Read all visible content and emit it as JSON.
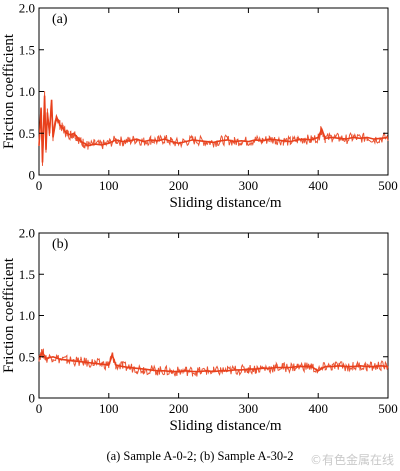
{
  "caption": "(a) Sample A-0-2; (b) Sample A-30-2",
  "watermark": "©有色金属在线",
  "colors": {
    "series": "#e8401c",
    "axis": "#000000",
    "background": "#ffffff"
  },
  "chart_data": [
    {
      "type": "line",
      "panel_label": "(a)",
      "xlabel": "Sliding distance/m",
      "ylabel": "Friction coefficient",
      "xlim": [
        0,
        500
      ],
      "ylim": [
        0,
        2.0
      ],
      "xticks": [
        "0",
        "100",
        "200",
        "300",
        "400",
        "500"
      ],
      "yticks": [
        "0",
        "0.5",
        "1.0",
        "1.5",
        "2.0"
      ],
      "grid": false,
      "series": [
        {
          "color": "#e8401c",
          "x": [
            0,
            3,
            5,
            8,
            10,
            12,
            15,
            18,
            20,
            25,
            30,
            35,
            40,
            45,
            50,
            55,
            60,
            65,
            70,
            80,
            90,
            100,
            110,
            120,
            130,
            140,
            150,
            160,
            170,
            180,
            190,
            200,
            210,
            220,
            230,
            240,
            250,
            260,
            270,
            280,
            290,
            300,
            310,
            320,
            330,
            340,
            350,
            360,
            370,
            380,
            390,
            400,
            405,
            410,
            420,
            430,
            440,
            450,
            460,
            470,
            480,
            490,
            500
          ],
          "y": [
            0.35,
            0.8,
            0.15,
            0.95,
            0.3,
            0.75,
            0.5,
            0.9,
            0.45,
            0.7,
            0.6,
            0.55,
            0.5,
            0.48,
            0.5,
            0.45,
            0.4,
            0.38,
            0.35,
            0.37,
            0.36,
            0.38,
            0.42,
            0.4,
            0.41,
            0.43,
            0.4,
            0.42,
            0.41,
            0.43,
            0.4,
            0.38,
            0.4,
            0.42,
            0.41,
            0.4,
            0.39,
            0.41,
            0.42,
            0.4,
            0.41,
            0.4,
            0.42,
            0.41,
            0.43,
            0.42,
            0.41,
            0.4,
            0.42,
            0.43,
            0.42,
            0.45,
            0.55,
            0.44,
            0.45,
            0.44,
            0.43,
            0.45,
            0.44,
            0.45,
            0.43,
            0.44,
            0.45
          ]
        }
      ]
    },
    {
      "type": "line",
      "panel_label": "(b)",
      "xlabel": "Sliding distance/m",
      "ylabel": "Friction coefficient",
      "xlim": [
        0,
        500
      ],
      "ylim": [
        0,
        2.0
      ],
      "xticks": [
        "0",
        "100",
        "200",
        "300",
        "400",
        "500"
      ],
      "yticks": [
        "0",
        "0.5",
        "1.0",
        "1.5",
        "2.0"
      ],
      "grid": false,
      "series": [
        {
          "color": "#e8401c",
          "x": [
            0,
            5,
            10,
            20,
            30,
            40,
            50,
            60,
            70,
            80,
            90,
            100,
            105,
            110,
            120,
            130,
            140,
            150,
            160,
            170,
            180,
            190,
            200,
            210,
            220,
            230,
            240,
            250,
            260,
            270,
            280,
            290,
            300,
            310,
            320,
            330,
            340,
            350,
            360,
            370,
            380,
            390,
            400,
            410,
            420,
            430,
            440,
            450,
            460,
            470,
            480,
            490,
            500
          ],
          "y": [
            0.5,
            0.55,
            0.48,
            0.5,
            0.47,
            0.46,
            0.45,
            0.44,
            0.43,
            0.42,
            0.41,
            0.4,
            0.52,
            0.4,
            0.38,
            0.37,
            0.36,
            0.35,
            0.34,
            0.33,
            0.33,
            0.32,
            0.32,
            0.33,
            0.32,
            0.32,
            0.33,
            0.32,
            0.33,
            0.33,
            0.34,
            0.34,
            0.35,
            0.35,
            0.36,
            0.36,
            0.37,
            0.37,
            0.37,
            0.38,
            0.38,
            0.38,
            0.33,
            0.38,
            0.38,
            0.39,
            0.38,
            0.38,
            0.39,
            0.38,
            0.38,
            0.39,
            0.38
          ]
        }
      ]
    }
  ]
}
